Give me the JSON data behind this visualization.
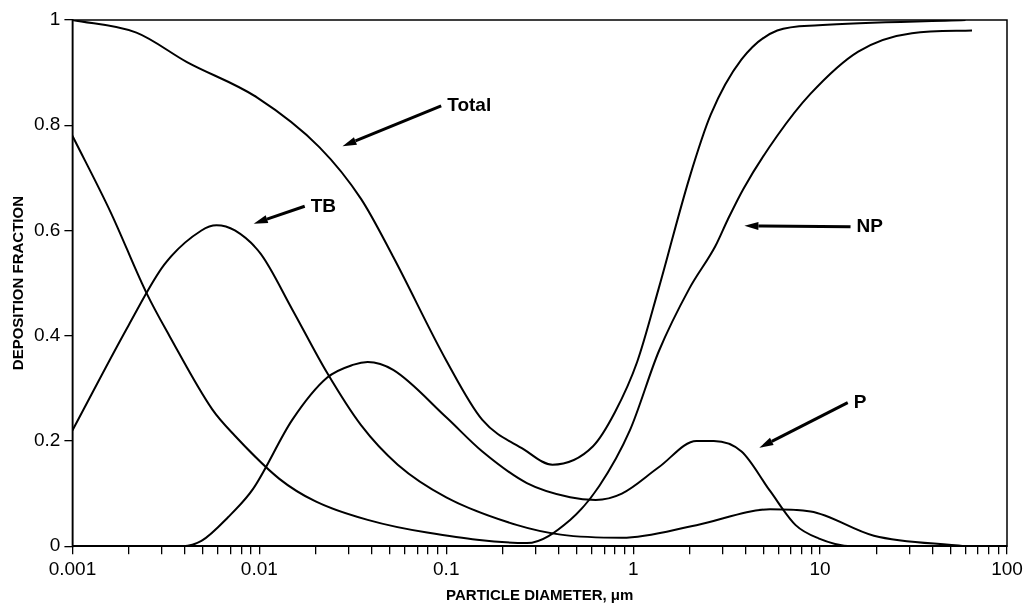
{
  "chart_data": {
    "type": "line",
    "xlabel": "PARTICLE DIAMETER, μm",
    "ylabel": "DEPOSITION FRACTION",
    "log": "x",
    "grid": false,
    "legend": false,
    "marker": "none",
    "line_style": "solid",
    "xlim": [
      0.001,
      100
    ],
    "ylim": [
      0,
      1
    ],
    "xticks": [
      0.001,
      {
        "value": 0.002,
        "label": null
      },
      {
        "value": 0.003,
        "label": null
      },
      {
        "value": 0.004,
        "label": null
      },
      {
        "value": 0.005,
        "label": null
      },
      {
        "value": 0.006,
        "label": null
      },
      {
        "value": 0.007,
        "label": null
      },
      {
        "value": 0.008,
        "label": null
      },
      {
        "value": 0.009,
        "label": null
      },
      0.01,
      {
        "value": 0.02,
        "label": null
      },
      {
        "value": 0.03,
        "label": null
      },
      {
        "value": 0.04,
        "label": null
      },
      {
        "value": 0.05,
        "label": null
      },
      {
        "value": 0.06,
        "label": null
      },
      {
        "value": 0.07,
        "label": null
      },
      {
        "value": 0.08,
        "label": null
      },
      {
        "value": 0.09,
        "label": null
      },
      0.1,
      {
        "value": 0.2,
        "label": null
      },
      {
        "value": 0.3,
        "label": null
      },
      {
        "value": 0.4,
        "label": null
      },
      {
        "value": 0.5,
        "label": null
      },
      {
        "value": 0.6,
        "label": null
      },
      {
        "value": 0.7,
        "label": null
      },
      {
        "value": 0.8,
        "label": null
      },
      {
        "value": 0.9,
        "label": null
      },
      1,
      {
        "value": 2,
        "label": null
      },
      {
        "value": 3,
        "label": null
      },
      {
        "value": 4,
        "label": null
      },
      {
        "value": 5,
        "label": null
      },
      {
        "value": 6,
        "label": null
      },
      {
        "value": 7,
        "label": null
      },
      {
        "value": 8,
        "label": null
      },
      {
        "value": 9,
        "label": null
      },
      10,
      {
        "value": 20,
        "label": null
      },
      {
        "value": 30,
        "label": null
      },
      {
        "value": 40,
        "label": null
      },
      {
        "value": 50,
        "label": null
      },
      {
        "value": 60,
        "label": null
      },
      {
        "value": 70,
        "label": null
      },
      {
        "value": 80,
        "label": null
      },
      {
        "value": 90,
        "label": null
      },
      100
    ],
    "yticks": [
      0,
      0.2,
      0.4,
      0.6,
      0.8,
      1
    ],
    "annotations": [
      "Total",
      "NP",
      "TB",
      "P"
    ],
    "series": [
      {
        "color": "#000000",
        "x": [
          0.001,
          0.0022,
          0.0041,
          0.0097,
          0.021,
          0.035,
          0.052,
          0.1,
          0.156,
          0.26,
          0.37,
          0.61,
          0.8,
          1.05,
          1.37,
          2,
          2.6,
          3.8,
          5.9,
          9.8,
          60
        ],
        "values": [
          1,
          0.976,
          0.92,
          0.853,
          0.758,
          0.66,
          0.55,
          0.353,
          0.24,
          0.184,
          0.155,
          0.19,
          0.255,
          0.35,
          0.49,
          0.7,
          0.82,
          0.925,
          0.98,
          0.99,
          1
        ]
      },
      {
        "color": "#000000",
        "x": [
          0.001,
          0.0016,
          0.0025,
          0.0033,
          0.0056,
          0.0074,
          0.0128,
          0.02,
          0.038,
          0.079,
          0.27,
          0.46,
          0.66,
          0.96,
          1.37,
          2,
          2.75,
          3.2,
          3.9,
          5.9,
          8.9,
          16,
          31,
          65
        ],
        "values": [
          0.78,
          0.635,
          0.48,
          0.4,
          0.26,
          0.21,
          0.128,
          0.085,
          0.05,
          0.026,
          0.006,
          0.05,
          0.115,
          0.22,
          0.37,
          0.49,
          0.57,
          0.62,
          0.68,
          0.78,
          0.86,
          0.94,
          0.975,
          0.98
        ]
      },
      {
        "color": "#000000",
        "x": [
          0.001,
          0.002,
          0.0031,
          0.0049,
          0.0059,
          0.0074,
          0.0102,
          0.015,
          0.023,
          0.035,
          0.055,
          0.1,
          0.24,
          0.41,
          0.87,
          2.18,
          5.4,
          8.9,
          19.4,
          59
        ],
        "values": [
          0.22,
          0.42,
          0.535,
          0.6,
          0.61,
          0.6,
          0.555,
          0.45,
          0.33,
          0.23,
          0.155,
          0.093,
          0.04,
          0.022,
          0.016,
          0.04,
          0.07,
          0.066,
          0.02,
          0
        ]
      },
      {
        "color": "#000000",
        "x": [
          0.001,
          0.0039,
          0.0049,
          0.0068,
          0.0093,
          0.015,
          0.023,
          0.032,
          0.038,
          0.052,
          0.1,
          0.156,
          0.27,
          0.46,
          0.63,
          0.87,
          1.37,
          2.18,
          2.7,
          3.8,
          5.4,
          7.4,
          9.8,
          14.7,
          60
        ],
        "values": [
          0,
          0,
          0.01,
          0.055,
          0.11,
          0.24,
          0.32,
          0.345,
          0.35,
          0.335,
          0.245,
          0.18,
          0.12,
          0.093,
          0.088,
          0.1,
          0.15,
          0.2,
          0.2,
          0.18,
          0.105,
          0.04,
          0.015,
          0,
          0
        ]
      }
    ]
  }
}
